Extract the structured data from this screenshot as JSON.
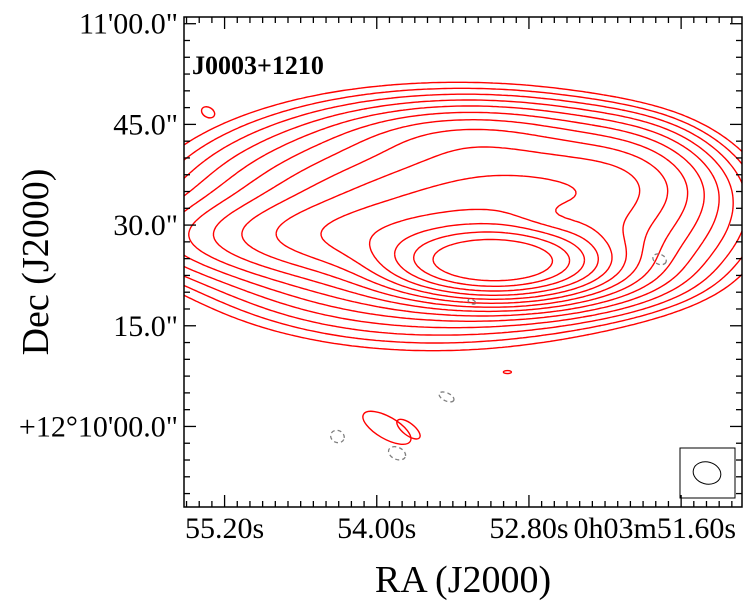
{
  "chart_data": {
    "type": "contour",
    "title": "J0003+1210",
    "xlabel": "RA (J2000)",
    "ylabel": "Dec (J2000)",
    "x_unit": "seconds of RA (0h03m ...)",
    "y_unit": "arcsec offset from +12°10'00.0\"",
    "x_ticks": [
      {
        "value": 55.2,
        "label": "55.20s"
      },
      {
        "value": 54.0,
        "label": "54.00s"
      },
      {
        "value": 52.8,
        "label": "52.80s"
      },
      {
        "value": 51.6,
        "label": "0h03m51.60s"
      }
    ],
    "y_ticks": [
      {
        "value": 60,
        "label": "11'00.0\""
      },
      {
        "value": 45,
        "label": "45.0\""
      },
      {
        "value": 30,
        "label": "30.0\""
      },
      {
        "value": 15,
        "label": "15.0\""
      },
      {
        "value": 0,
        "label": "+12°10'00.0\""
      }
    ],
    "xlim": [
      55.52,
      51.12
    ],
    "ylim": [
      -12,
      61
    ],
    "peak": {
      "ra_s": 53.07,
      "dec_as": 24.5
    },
    "positive_contours": {
      "color": "#ff0000",
      "style": "solid",
      "levels": 16
    },
    "negative_contours": {
      "color": "#808080",
      "style": "dashed"
    },
    "beam": {
      "major_as": 4.2,
      "minor_as": 3.2,
      "pa_deg": 15
    },
    "grid": false
  }
}
